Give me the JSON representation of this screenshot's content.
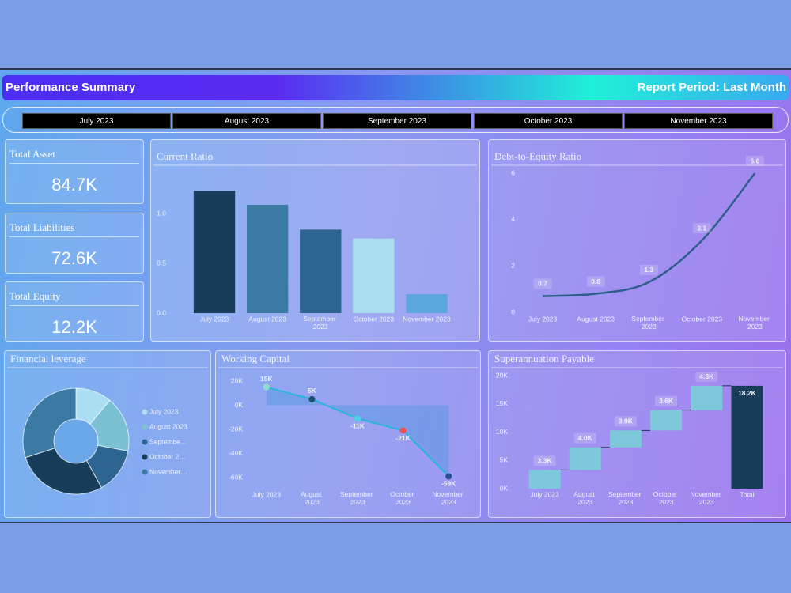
{
  "header": {
    "title": "Performance Summary",
    "period": "Report Period: Last Month"
  },
  "slicer": [
    "July 2023",
    "August 2023",
    "September 2023",
    "October 2023",
    "November 2023"
  ],
  "kpis": [
    {
      "label": "Total Asset",
      "value": "84.7K"
    },
    {
      "label": "Total Liabilities",
      "value": "72.6K"
    },
    {
      "label": "Total Equity",
      "value": "12.2K"
    }
  ],
  "chart_data": [
    {
      "type": "bar",
      "title": "Current Ratio",
      "categories": [
        "July 2023",
        "August 2023",
        "September 2023",
        "October 2023",
        "November 2023"
      ],
      "values": [
        1.23,
        1.09,
        0.84,
        0.75,
        0.19
      ],
      "colors": [
        "#173d5a",
        "#3a7aa3",
        "#2d6490",
        "#a9dff0",
        "#5ba6de"
      ],
      "ylim": [
        0,
        1.4
      ],
      "yticks": [
        {
          "value": 0,
          "label": "0.0"
        },
        {
          "value": 0.5,
          "label": "0.5"
        },
        {
          "value": 1,
          "label": "1.0"
        }
      ]
    },
    {
      "type": "line",
      "title": "Debt-to-Equity Ratio",
      "categories": [
        "July 2023",
        "August 2023",
        "September 2023",
        "October 2023",
        "November 2023"
      ],
      "values": [
        0.7,
        0.8,
        1.3,
        3.1,
        6.0
      ],
      "value_labels": [
        "0.7",
        "0.8",
        "1.3",
        "3.1",
        "6.0"
      ],
      "color": "#2e5f8a",
      "ylim": [
        0,
        6
      ],
      "yticks": [
        0,
        2,
        4,
        6
      ]
    },
    {
      "type": "pie",
      "title": "Financial leverage",
      "categories": [
        "July 2023",
        "August 2023",
        "Septembe…",
        "October 2…",
        "November…"
      ],
      "values": [
        11,
        17,
        14,
        28,
        30
      ],
      "colors": [
        "#a9dff0",
        "#7cc0d4",
        "#2d6490",
        "#173d5a",
        "#3a7aa3"
      ]
    },
    {
      "type": "area",
      "title": "Working Capital",
      "categories": [
        "July 2023",
        "August 2023",
        "September 2023",
        "October 2023",
        "November 2023"
      ],
      "values": [
        15000,
        5000,
        -11000,
        -21000,
        -59000
      ],
      "value_labels": [
        "15K",
        "5K",
        "-11K",
        "-21K",
        "-59K"
      ],
      "color": "#29b6d8",
      "point_colors": [
        "#8fe0c8",
        "#1f4f70",
        "#4fd0e0",
        "#f05050",
        "#2a4f90"
      ],
      "ylim": [
        -60000,
        20000
      ],
      "yticks": [
        {
          "value": 20000,
          "label": "20K"
        },
        {
          "value": 0,
          "label": "0K"
        },
        {
          "value": -20000,
          "label": "-20K"
        },
        {
          "value": -40000,
          "label": "-40K"
        },
        {
          "value": -60000,
          "label": "-60K"
        }
      ]
    },
    {
      "type": "waterfall",
      "title": "Superannuation Payable",
      "categories": [
        "July 2023",
        "August 2023",
        "September 2023",
        "October 2023",
        "November 2023",
        "Total"
      ],
      "values": [
        3300,
        4000,
        3000,
        3600,
        4300,
        18200
      ],
      "value_labels": [
        "3.3K",
        "4.0K",
        "3.0K",
        "3.6K",
        "4.3K",
        "18.2K"
      ],
      "last_is_total": true,
      "color": "#7ec8dc",
      "total_color": "#173d5a",
      "ylim": [
        0,
        20000
      ],
      "yticks": [
        {
          "value": 0,
          "label": "0K"
        },
        {
          "value": 5000,
          "label": "5K"
        },
        {
          "value": 10000,
          "label": "10K"
        },
        {
          "value": 15000,
          "label": "15K"
        },
        {
          "value": 20000,
          "label": "20K"
        }
      ]
    }
  ]
}
